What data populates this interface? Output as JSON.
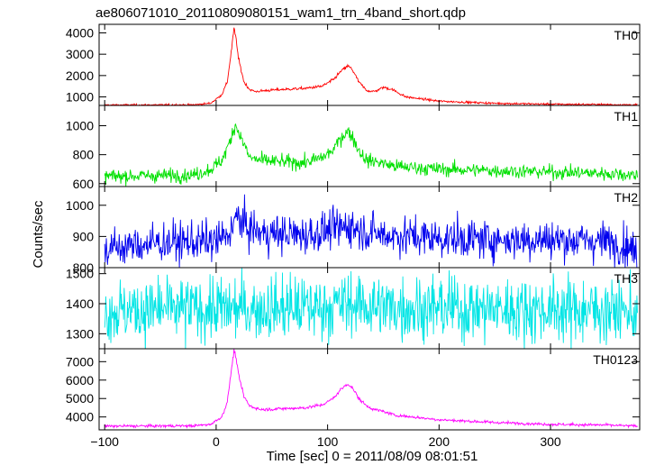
{
  "chart_data": {
    "type": "line",
    "title": "ae806071010_20110809080151_wam1_trn_4band_short.qdp",
    "xlabel": "Time [sec] 0 = 2011/08/09 08:01:51",
    "ylabel": "Counts/sec",
    "xlim": [
      -105,
      380
    ],
    "xticks": [
      -100,
      0,
      100,
      200,
      300
    ],
    "tick_labels": [
      "−100",
      "0",
      "100",
      "200",
      "300"
    ],
    "grid": false,
    "legend": "none",
    "panels": [
      {
        "name": "TH0",
        "color": "#ff0000",
        "ylim": [
          600,
          4400
        ],
        "yticks": [
          1000,
          2000,
          3000,
          4000
        ],
        "x": [
          -100,
          -20,
          -5,
          5,
          10,
          14,
          16,
          18,
          20,
          25,
          30,
          35,
          45,
          60,
          80,
          95,
          105,
          112,
          118,
          122,
          128,
          135,
          142,
          150,
          158,
          170,
          200,
          250,
          300,
          350,
          378
        ],
        "y": [
          620,
          630,
          700,
          1100,
          1700,
          3300,
          4200,
          3700,
          2800,
          1700,
          1350,
          1250,
          1300,
          1350,
          1400,
          1500,
          1800,
          2200,
          2450,
          2300,
          1700,
          1300,
          1250,
          1450,
          1350,
          1000,
          800,
          700,
          660,
          640,
          630
        ]
      },
      {
        "name": "TH1",
        "color": "#00e000",
        "ylim": [
          580,
          1140
        ],
        "yticks": [
          600,
          800,
          1000
        ],
        "x": [
          -100,
          -20,
          -5,
          5,
          12,
          17,
          20,
          25,
          30,
          40,
          60,
          80,
          95,
          105,
          112,
          118,
          122,
          128,
          135,
          145,
          160,
          200,
          250,
          300,
          350,
          378
        ],
        "y": [
          650,
          660,
          700,
          760,
          880,
          1010,
          960,
          870,
          780,
          760,
          750,
          745,
          780,
          830,
          920,
          960,
          930,
          830,
          760,
          750,
          720,
          700,
          690,
          680,
          670,
          660
        ]
      },
      {
        "name": "TH2",
        "color": "#0000ee",
        "ylim": [
          800,
          1060
        ],
        "yticks": [
          800,
          900,
          1000
        ],
        "x": [
          -100,
          -50,
          0,
          10,
          15,
          20,
          25,
          40,
          80,
          110,
          120,
          130,
          150,
          200,
          250,
          300,
          350,
          370,
          378
        ],
        "y": [
          860,
          880,
          885,
          900,
          940,
          960,
          935,
          910,
          905,
          925,
          935,
          920,
          905,
          895,
          890,
          890,
          885,
          870,
          840
        ]
      },
      {
        "name": "TH3",
        "color": "#00e5e5",
        "ylim": [
          1250,
          1520
        ],
        "yticks": [
          1300,
          1400,
          1500
        ],
        "x": [
          -100,
          -50,
          0,
          50,
          100,
          120,
          150,
          200,
          250,
          300,
          350,
          378
        ],
        "y": [
          1375,
          1380,
          1382,
          1385,
          1390,
          1400,
          1388,
          1385,
          1382,
          1380,
          1378,
          1370
        ]
      },
      {
        "name": "TH0123",
        "color": "#ff00ff",
        "ylim": [
          3300,
          7700
        ],
        "yticks": [
          4000,
          5000,
          6000,
          7000
        ],
        "x": [
          -100,
          -20,
          -5,
          5,
          10,
          14,
          16,
          18,
          20,
          25,
          30,
          40,
          60,
          80,
          95,
          105,
          112,
          118,
          122,
          128,
          135,
          142,
          150,
          160,
          200,
          250,
          300,
          350,
          378
        ],
        "y": [
          3500,
          3520,
          3600,
          4000,
          4800,
          6700,
          7600,
          7200,
          6300,
          5100,
          4600,
          4400,
          4450,
          4500,
          4650,
          5000,
          5500,
          5800,
          5600,
          5000,
          4600,
          4400,
          4300,
          4100,
          3850,
          3700,
          3600,
          3560,
          3500
        ]
      }
    ]
  }
}
